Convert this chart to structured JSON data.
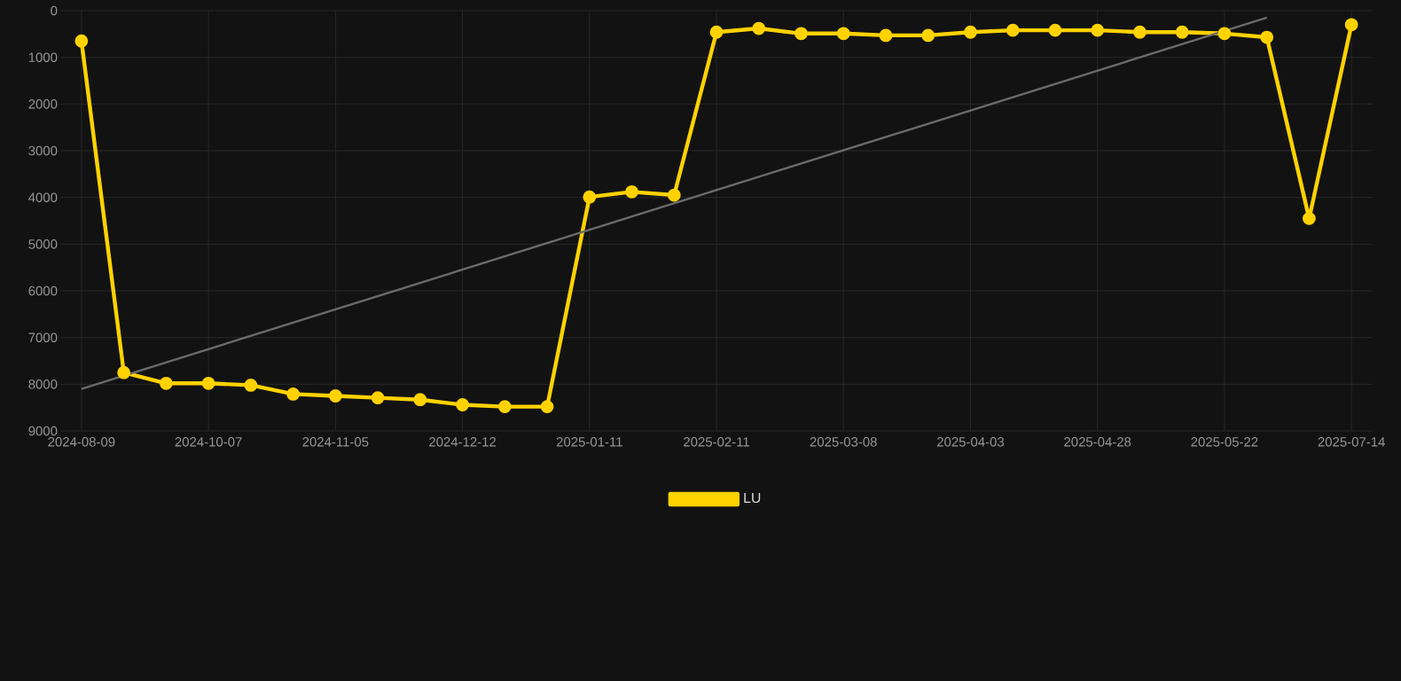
{
  "chart_data": {
    "type": "line",
    "categories": [
      "2024-08-09",
      null,
      null,
      "2024-10-07",
      null,
      null,
      "2024-11-05",
      null,
      null,
      "2024-12-12",
      null,
      null,
      "2025-01-11",
      null,
      null,
      "2025-02-11",
      null,
      null,
      "2025-03-08",
      null,
      null,
      "2025-04-03",
      null,
      null,
      "2025-04-28",
      null,
      null,
      "2025-05-22",
      null,
      null,
      "2025-07-14"
    ],
    "series": [
      {
        "name": "LU",
        "color": "#ffd200",
        "values": [
          650,
          7750,
          7980,
          7980,
          8020,
          8210,
          8250,
          8290,
          8330,
          8440,
          8480,
          8480,
          3990,
          3880,
          3950,
          460,
          380,
          490,
          490,
          530,
          530,
          460,
          420,
          420,
          420,
          460,
          460,
          490,
          570,
          4450,
          300
        ]
      },
      {
        "type": "line",
        "color": "#6b6b6b",
        "marker": "none",
        "values": [
          8100,
          null,
          null,
          null,
          null,
          null,
          null,
          null,
          null,
          null,
          null,
          null,
          null,
          null,
          null,
          null,
          null,
          null,
          null,
          null,
          null,
          null,
          null,
          null,
          null,
          null,
          null,
          null,
          150,
          null,
          null
        ]
      }
    ],
    "ylim": [
      9000,
      0
    ],
    "yticks": [
      0,
      1000,
      2000,
      3000,
      4000,
      5000,
      6000,
      7000,
      8000,
      9000
    ],
    "grid": true,
    "legend": "bottom",
    "marker": "circle",
    "line_style": "solid"
  }
}
